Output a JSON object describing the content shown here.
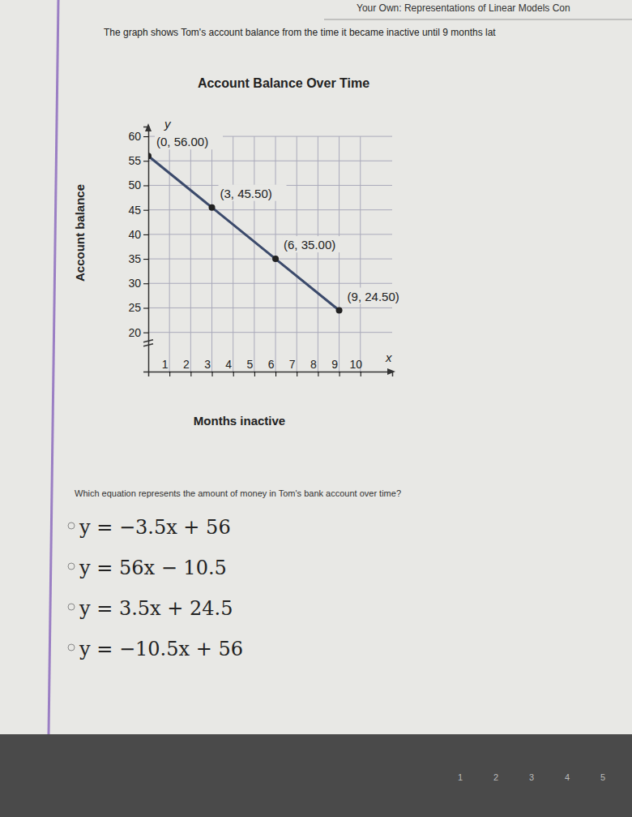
{
  "header": "Your Own: Representations of Linear Models Con",
  "intro": "The graph shows Tom's account balance from the time it became inactive until 9 months lat",
  "chart_data": {
    "type": "line",
    "title": "Account Balance Over Time",
    "x_label": "Months inactive",
    "y_label": "Account balance",
    "x_axis_letter": "x",
    "y_axis_letter": "y",
    "x": [
      0,
      3,
      6,
      9
    ],
    "series": [
      {
        "color": "#3b4a6b",
        "marker": "circle",
        "values": [
          56,
          45.5,
          35,
          24.5
        ]
      }
    ],
    "xlim": [
      0,
      11.5
    ],
    "ylim": [
      12,
      62
    ],
    "xticks": [
      1,
      2,
      3,
      4,
      5,
      6,
      7,
      8,
      9,
      10
    ],
    "yticks": [
      20,
      25,
      30,
      35,
      40,
      45,
      50,
      55,
      60
    ],
    "grid": true,
    "annotations": [
      {
        "x": 0,
        "y": 56,
        "text": "(0, 56.00)"
      },
      {
        "x": 3,
        "y": 45.5,
        "text": "(3, 45.50)"
      },
      {
        "x": 6,
        "y": 35,
        "text": "(6, 35.00)"
      },
      {
        "x": 9,
        "y": 24.5,
        "text": "(9, 24.50)"
      }
    ]
  },
  "question": "Which equation represents the amount of money in Tom's bank account over time?",
  "options": [
    "y = −3.5x + 56",
    "y = 56x − 10.5",
    "y = 3.5x + 24.5",
    "y = −10.5x + 56"
  ],
  "pages": [
    "1",
    "2",
    "3",
    "4",
    "5"
  ]
}
